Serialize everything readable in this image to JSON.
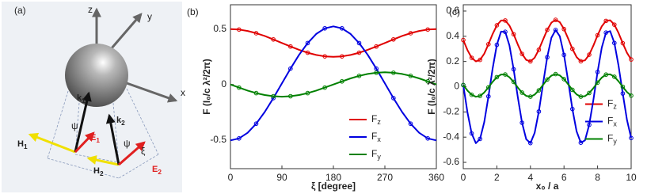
{
  "diagram": {
    "panel_label": "(a)",
    "axes": [
      "z",
      "y",
      "x"
    ],
    "labels": [
      "k1",
      "k2",
      "ψ",
      "ψ",
      "H1",
      "H2",
      "E1",
      "E2",
      "ξ"
    ]
  },
  "chart_data": [
    {
      "type": "line",
      "panel_label": "(b)",
      "xlabel": "ξ [degree]",
      "ylabel": "F (I₀/c λ²/2π)",
      "x": [
        0,
        15,
        30,
        45,
        60,
        75,
        90,
        105,
        120,
        135,
        150,
        165,
        180,
        195,
        210,
        225,
        240,
        255,
        270,
        285,
        300,
        315,
        330,
        345,
        360
      ],
      "series": [
        {
          "name": "Fz",
          "color": "#e00000",
          "values": [
            0.5,
            0.496,
            0.483,
            0.463,
            0.438,
            0.407,
            0.375,
            0.343,
            0.313,
            0.287,
            0.267,
            0.254,
            0.25,
            0.254,
            0.267,
            0.287,
            0.313,
            0.343,
            0.375,
            0.407,
            0.438,
            0.463,
            0.483,
            0.496,
            0.5
          ]
        },
        {
          "name": "Fx",
          "color": "#0000e0",
          "values": [
            -0.505,
            -0.487,
            -0.436,
            -0.354,
            -0.248,
            -0.123,
            0.01,
            0.143,
            0.268,
            0.374,
            0.456,
            0.507,
            0.525,
            0.507,
            0.456,
            0.374,
            0.268,
            0.143,
            0.01,
            -0.123,
            -0.248,
            -0.354,
            -0.436,
            -0.487,
            -0.505
          ]
        },
        {
          "name": "Fy",
          "color": "#008000",
          "values": [
            0,
            -0.028,
            -0.055,
            -0.078,
            -0.095,
            -0.106,
            -0.11,
            -0.106,
            -0.095,
            -0.078,
            -0.055,
            -0.028,
            0,
            0.028,
            0.055,
            0.078,
            0.095,
            0.106,
            0.11,
            0.106,
            0.095,
            0.078,
            0.055,
            0.028,
            0
          ]
        }
      ],
      "xlim": [
        0,
        360
      ],
      "ylim": [
        -0.76,
        0.72
      ],
      "xticks": [
        0,
        90,
        180,
        270,
        360
      ],
      "yticks": [
        -0.5,
        0,
        0.5
      ],
      "legend": "lower right",
      "markers": true
    },
    {
      "type": "line",
      "panel_label": "(c)",
      "xlabel": "x₀ / a",
      "ylabel": "F (I₀/c λ²/2π)",
      "x": [
        0,
        0.25,
        0.5,
        0.75,
        1,
        1.25,
        1.5,
        1.75,
        2,
        2.25,
        2.5,
        2.75,
        3,
        3.25,
        3.5,
        3.75,
        4,
        4.25,
        4.5,
        4.75,
        5,
        5.25,
        5.5,
        5.75,
        6,
        6.25,
        6.5,
        6.75,
        7,
        7.25,
        7.5,
        7.75,
        8,
        8.25,
        8.5,
        8.75,
        9,
        9.25,
        9.5,
        9.75,
        10
      ],
      "series": [
        {
          "name": "Fz",
          "color": "#e00000",
          "values": [
            0.37,
            0.29,
            0.229,
            0.201,
            0.213,
            0.262,
            0.337,
            0.418,
            0.487,
            0.525,
            0.525,
            0.485,
            0.416,
            0.334,
            0.26,
            0.212,
            0.201,
            0.23,
            0.293,
            0.373,
            0.451,
            0.508,
            0.53,
            0.512,
            0.457,
            0.381,
            0.3,
            0.235,
            0.202,
            0.209,
            0.254,
            0.326,
            0.408,
            0.479,
            0.522,
            0.527,
            0.492,
            0.426,
            0.345,
            0.269,
            0.216
          ]
        },
        {
          "name": "Fx",
          "color": "#0000e0",
          "values": [
            0.013,
            -0.204,
            -0.371,
            -0.448,
            -0.414,
            -0.28,
            -0.077,
            0.145,
            0.332,
            0.437,
            0.435,
            0.327,
            0.138,
            -0.084,
            -0.286,
            -0.417,
            -0.447,
            -0.367,
            -0.197,
            0.021,
            0.234,
            0.389,
            0.45,
            0.4,
            0.252,
            0.043,
            -0.177,
            -0.354,
            -0.444,
            -0.425,
            -0.302,
            -0.105,
            0.117,
            0.311,
            0.429,
            0.441,
            0.347,
            0.166,
            -0.054,
            -0.263,
            -0.407
          ]
        },
        {
          "name": "Fy",
          "color": "#008000",
          "values": [
            0.013,
            -0.031,
            -0.064,
            -0.08,
            -0.073,
            -0.046,
            -0.005,
            0.039,
            0.076,
            0.097,
            0.097,
            0.075,
            0.038,
            -0.007,
            -0.047,
            -0.073,
            -0.079,
            -0.063,
            -0.029,
            0.014,
            0.057,
            0.088,
            0.1,
            0.09,
            0.06,
            0.019,
            -0.025,
            -0.061,
            -0.079,
            -0.075,
            -0.05,
            -0.011,
            0.033,
            0.072,
            0.096,
            0.098,
            0.079,
            0.043,
            -0.001,
            -0.043,
            -0.071
          ]
        }
      ],
      "xlim": [
        0,
        10
      ],
      "ylim": [
        -0.65,
        0.65
      ],
      "xticks": [
        0,
        2,
        4,
        6,
        8,
        10
      ],
      "yticks": [
        -0.6,
        -0.4,
        -0.2,
        0,
        0.2,
        0.4,
        0.6
      ],
      "legend": "center right",
      "markers": true
    }
  ]
}
